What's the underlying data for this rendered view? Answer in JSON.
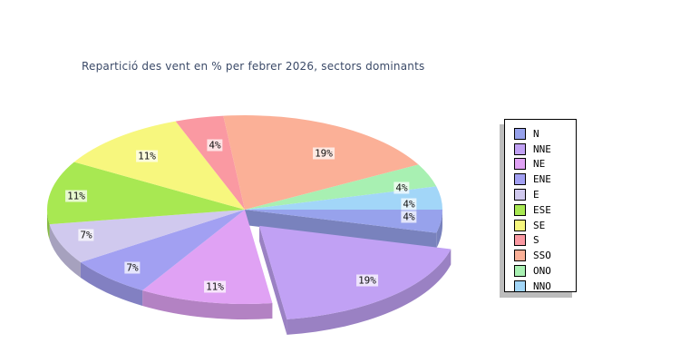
{
  "page": {
    "background": "#ffffff"
  },
  "chart_data": {
    "type": "pie",
    "style": "3d-exploded-pie",
    "title": "Repartició des vent en % per febrer 2026, sectors dominants",
    "title_color": "#3b4a68",
    "unit": "%",
    "categories": [
      "N",
      "NNE",
      "NE",
      "ENE",
      "E",
      "ESE",
      "SE",
      "S",
      "SSO",
      "ONO",
      "NNO"
    ],
    "values": [
      4,
      19,
      11,
      7,
      7,
      11,
      11,
      4,
      19,
      4,
      4
    ],
    "value_labels": [
      "4%",
      "19%",
      "11%",
      "7%",
      "7%",
      "11%",
      "11%",
      "4%",
      "19%",
      "4%",
      "4%"
    ],
    "colors": [
      "#97a2ec",
      "#c1a1f4",
      "#e0a2f4",
      "#a2a0f2",
      "#d0c9ee",
      "#a8e852",
      "#f7f77e",
      "#fa99a2",
      "#fbb097",
      "#a8f0b2",
      "#a2d6f8"
    ],
    "exploded_categories": [
      "NNE"
    ],
    "start_angle_deg": 0,
    "direction": "clockwise",
    "legend_position": "right",
    "legend_border_color": "#000000",
    "legend_shadow_color": "#bdbdbd",
    "label_text_color": "#111111"
  }
}
